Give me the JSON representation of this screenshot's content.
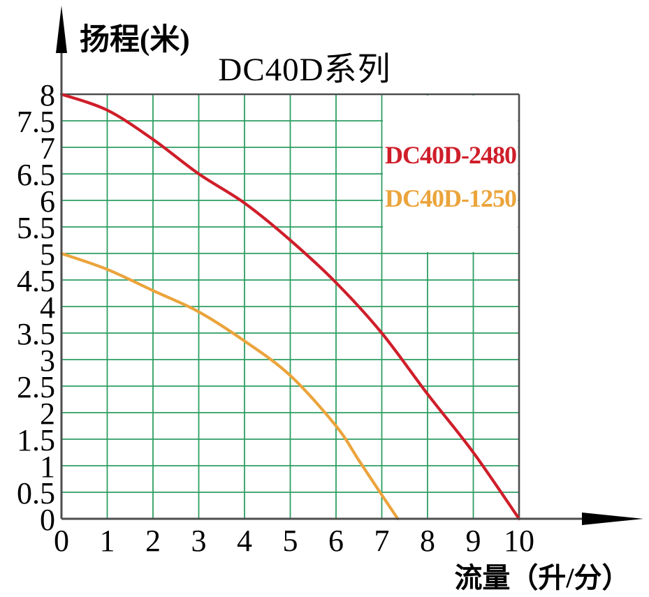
{
  "colors": {
    "grid": "#2d9e62",
    "axis": "#4d4d4d",
    "arrow": "#000000",
    "background": "#ffffff",
    "legend_background": "#ffffff",
    "tick_text": "#000000",
    "series_red": "#cf1e2a",
    "series_orange": "#eba43c"
  },
  "chart_data": {
    "type": "line",
    "title": "DC40D系列",
    "ylabel": "扬程(米)",
    "xlabel": "流量（升/分）",
    "xlim": [
      0,
      10
    ],
    "ylim": [
      0,
      8
    ],
    "xticks": [
      "0",
      "1",
      "2",
      "3",
      "4",
      "5",
      "6",
      "7",
      "8",
      "9",
      "10"
    ],
    "yticks": [
      "0",
      "0.5",
      "1",
      "1.5",
      "2",
      "2.5",
      "3",
      "3.5",
      "4",
      "4.5",
      "5",
      "5.5",
      "6",
      "6.5",
      "7",
      "7.5",
      "8"
    ],
    "grid": true,
    "legend_position": "inside-top-right",
    "legend_box": {
      "x": [
        7,
        10
      ],
      "y": [
        5,
        8
      ]
    },
    "series": [
      {
        "name": "DC40D-2480",
        "color": "#cf1e2a",
        "points": [
          [
            0,
            8
          ],
          [
            1,
            7.7
          ],
          [
            2,
            7.15
          ],
          [
            3,
            6.5
          ],
          [
            4,
            5.95
          ],
          [
            5,
            5.25
          ],
          [
            6,
            4.45
          ],
          [
            7,
            3.5
          ],
          [
            8,
            2.35
          ],
          [
            9,
            1.25
          ],
          [
            10,
            0
          ]
        ]
      },
      {
        "name": "DC40D-1250",
        "color": "#eba43c",
        "points": [
          [
            0,
            5
          ],
          [
            1,
            4.7
          ],
          [
            2,
            4.3
          ],
          [
            3,
            3.9
          ],
          [
            4,
            3.35
          ],
          [
            5,
            2.7
          ],
          [
            6,
            1.75
          ],
          [
            6.5,
            1.1
          ],
          [
            7,
            0.45
          ],
          [
            7.35,
            0
          ]
        ]
      }
    ]
  }
}
